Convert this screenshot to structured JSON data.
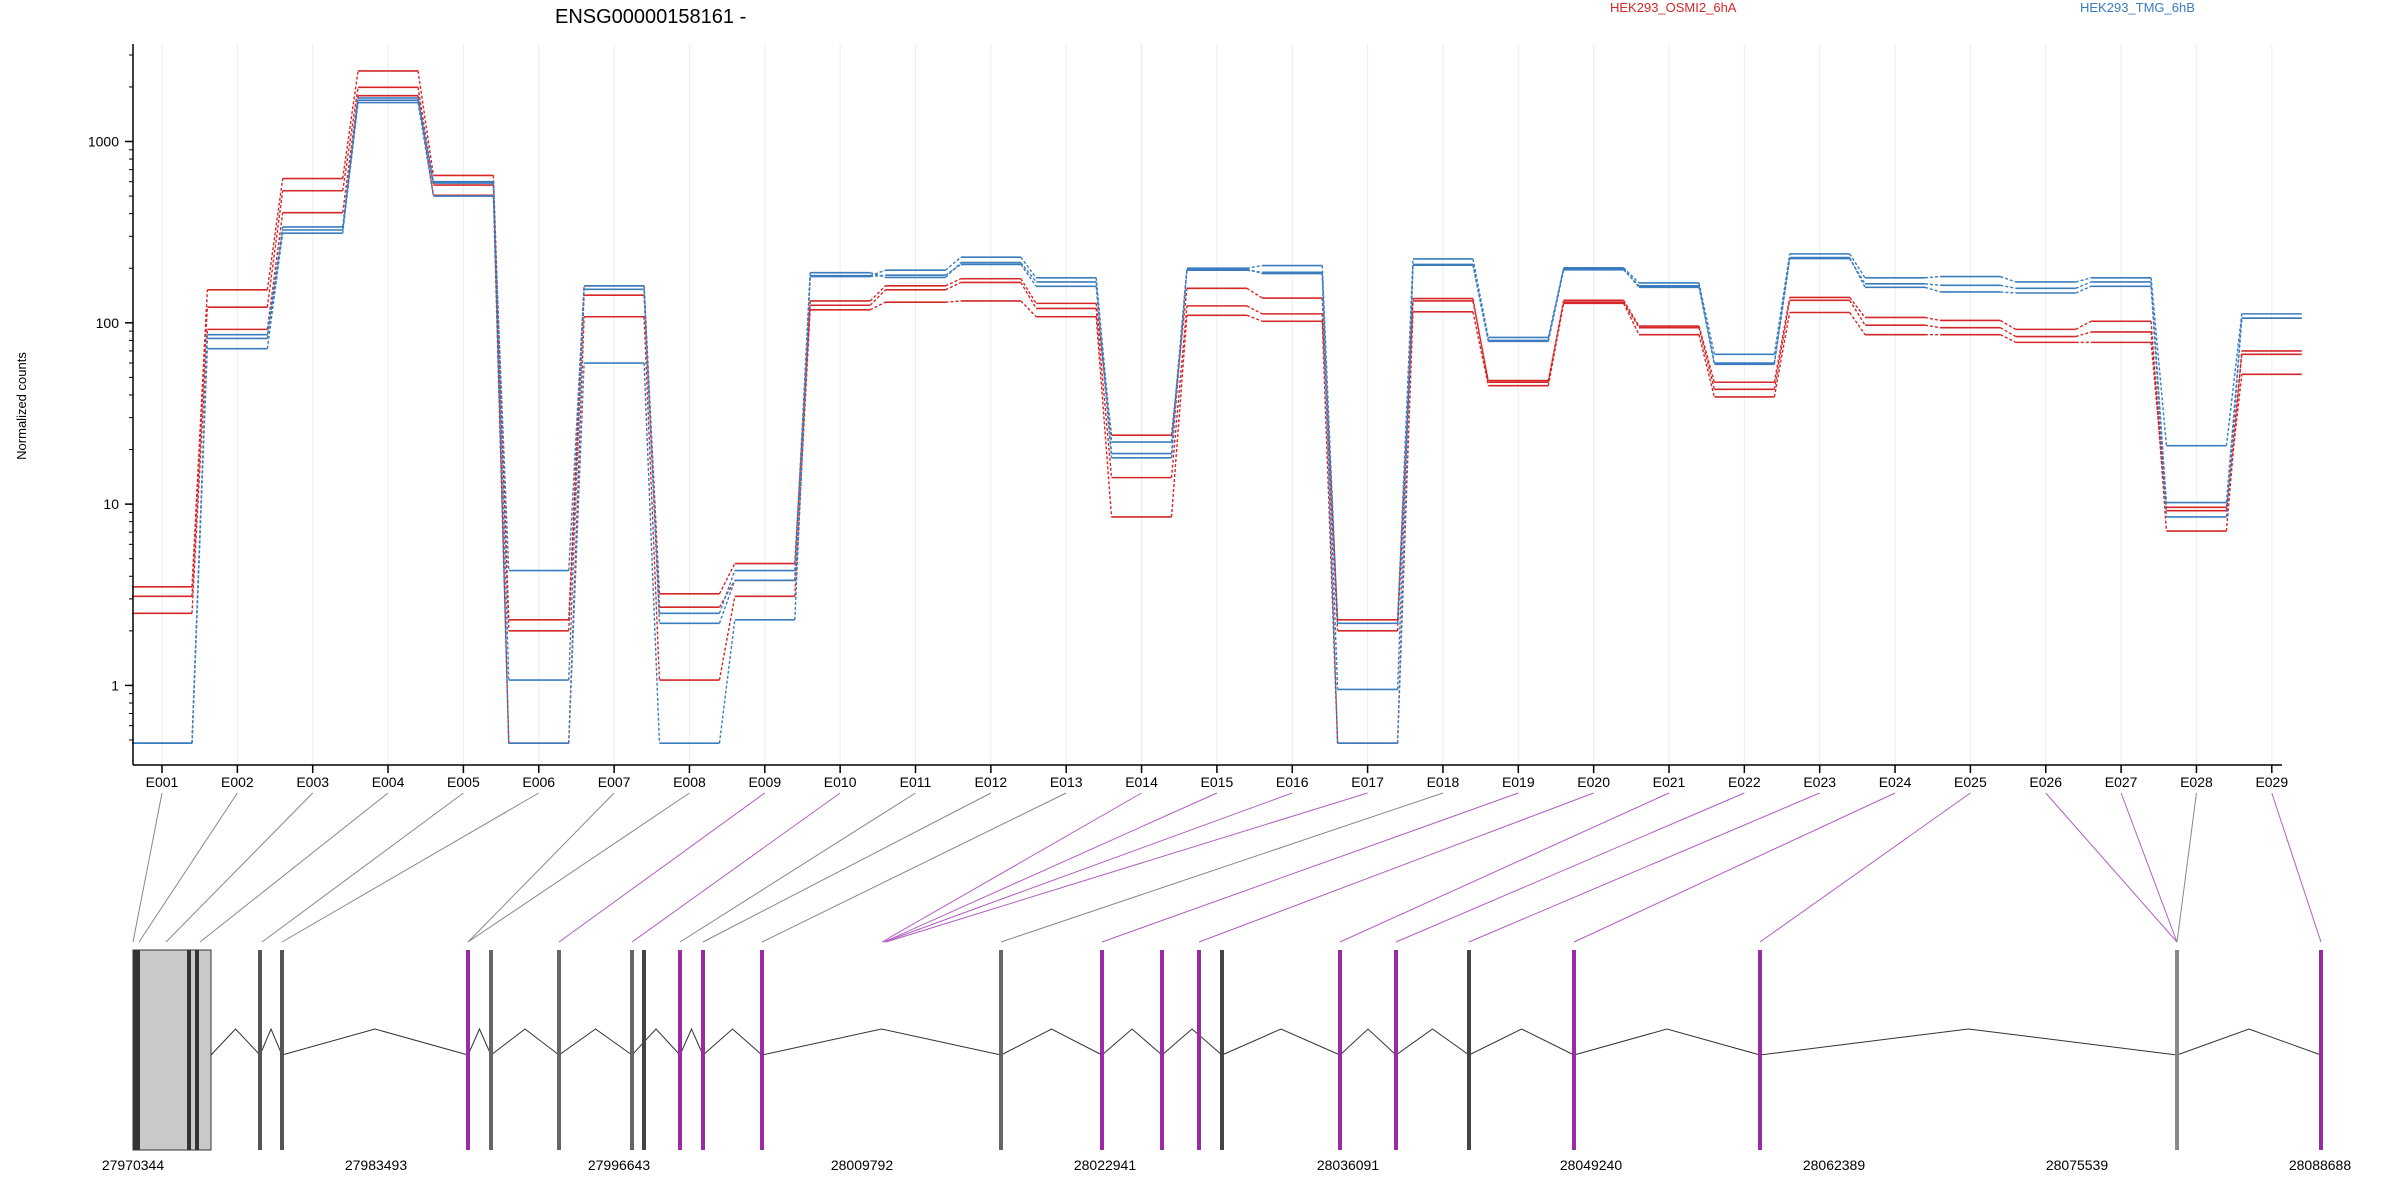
{
  "chart_data": {
    "type": "line",
    "title": "ENSG00000158161 -",
    "ylabel": "Normalized counts",
    "xlabel": "",
    "y_scale": "log",
    "ylim": [
      0.5,
      3000
    ],
    "y_ticks": [
      {
        "value": 1,
        "label": "1"
      },
      {
        "value": 10,
        "label": "10"
      },
      {
        "value": 100,
        "label": "100"
      },
      {
        "value": 1000,
        "label": "1000"
      }
    ],
    "grid": "vertical lines at each exon",
    "legend_position": "top",
    "categories": [
      "E001",
      "E002",
      "E003",
      "E004",
      "E005",
      "E006",
      "E007",
      "E008",
      "E009",
      "E010",
      "E011",
      "E012",
      "E013",
      "E014",
      "E015",
      "E016",
      "E017",
      "E018",
      "E019",
      "E020",
      "E021",
      "E022",
      "E023",
      "E024",
      "E025",
      "E026",
      "E027",
      "E028",
      "E029"
    ],
    "groups": [
      {
        "name": "HEK293_OSMI2_6hA",
        "color": "#d62728"
      },
      {
        "name": "HEK293_TMG_6hB",
        "color": "#3a7dbf"
      }
    ],
    "series": [
      {
        "group": "HEK293_OSMI2_6hA",
        "values": [
          3.5,
          152,
          625,
          2450,
          650,
          2.3,
          160,
          3.2,
          4.7,
          132,
          160,
          175,
          128,
          24,
          155,
          137,
          2.3,
          136,
          47,
          133,
          96,
          47,
          138,
          107,
          103,
          92,
          102,
          7.1,
          70
        ]
      },
      {
        "group": "HEK293_OSMI2_6hA",
        "values": [
          3.1,
          122,
          535,
          1990,
          575,
          2.0,
          142,
          2.7,
          3.8,
          125,
          152,
          167,
          120,
          14,
          124,
          112,
          2.0,
          132,
          48,
          130,
          94,
          43,
          133,
          97,
          94,
          84,
          89,
          9.6,
          67
        ]
      },
      {
        "group": "HEK293_OSMI2_6hA",
        "values": [
          2.5,
          92,
          405,
          1790,
          505,
          0.48,
          108,
          1.07,
          3.1,
          118,
          130,
          132,
          108,
          8.5,
          110,
          102,
          0.48,
          115,
          45,
          128,
          86,
          39,
          114,
          86,
          86,
          78,
          78,
          9.2,
          52
        ]
      },
      {
        "group": "HEK293_TMG_6hB",
        "values": [
          0.48,
          72,
          312,
          1640,
          500,
          4.3,
          160,
          2.5,
          4.3,
          182,
          195,
          230,
          177,
          22,
          200,
          207,
          2.2,
          225,
          83,
          201,
          166,
          67,
          240,
          177,
          180,
          168,
          177,
          21,
          112
        ]
      },
      {
        "group": "HEK293_TMG_6hB",
        "values": [
          0.48,
          82,
          338,
          1740,
          600,
          1.07,
          153,
          2.2,
          3.8,
          189,
          178,
          215,
          168,
          19,
          195,
          190,
          0.95,
          208,
          79,
          196,
          160,
          59,
          226,
          164,
          161,
          155,
          168,
          10.2,
          106
        ]
      },
      {
        "group": "HEK293_TMG_6hB",
        "values": [
          0.48,
          86,
          325,
          1690,
          590,
          0.48,
          60,
          0.48,
          2.3,
          180,
          183,
          210,
          159,
          18,
          198,
          187,
          0.48,
          210,
          80,
          198,
          157,
          60,
          229,
          157,
          148,
          146,
          159,
          8.5,
          106
        ]
      }
    ],
    "genomic_axis": {
      "tick_labels": [
        "27970344",
        "27983493",
        "27996643",
        "28009792",
        "28022941",
        "28036091",
        "28049240",
        "28062389",
        "28075539",
        "28088688"
      ],
      "exon_highlight": [
        "gray",
        "gray",
        "gray",
        "gray",
        "gray",
        "gray",
        "gray",
        "gray",
        "purple",
        "purple",
        "gray",
        "gray",
        "gray",
        "purple",
        "purple",
        "purple",
        "purple",
        "gray",
        "purple",
        "purple",
        "purple",
        "purple",
        "purple",
        "purple",
        "purple",
        "purple",
        "purple",
        "gray",
        "purple"
      ]
    }
  }
}
